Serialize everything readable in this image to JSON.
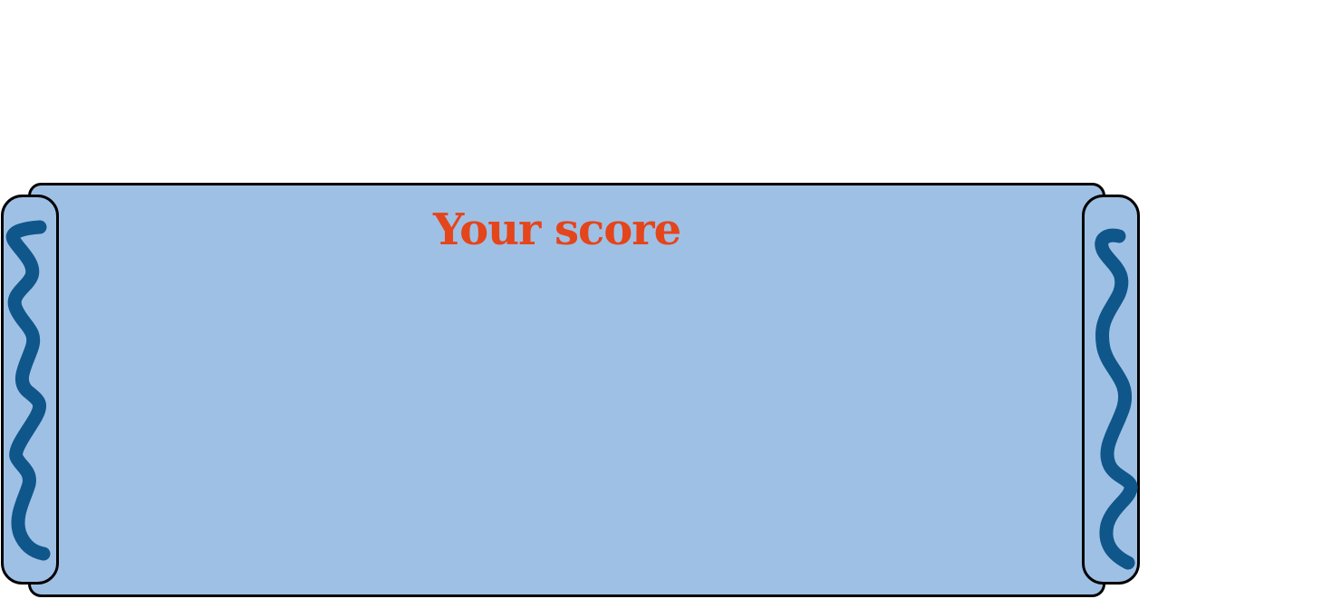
{
  "score_panel": {
    "title": "Your score"
  },
  "colors": {
    "panel_fill": "#9fc0e5",
    "roll_fill": "#9fc0e5",
    "outline": "#000000",
    "wave_stroke": "#0f568b",
    "title_text": "#e4451b"
  },
  "icons": {
    "left_roll_decoration": "wavy-line-icon",
    "right_roll_decoration": "wavy-line-icon"
  }
}
